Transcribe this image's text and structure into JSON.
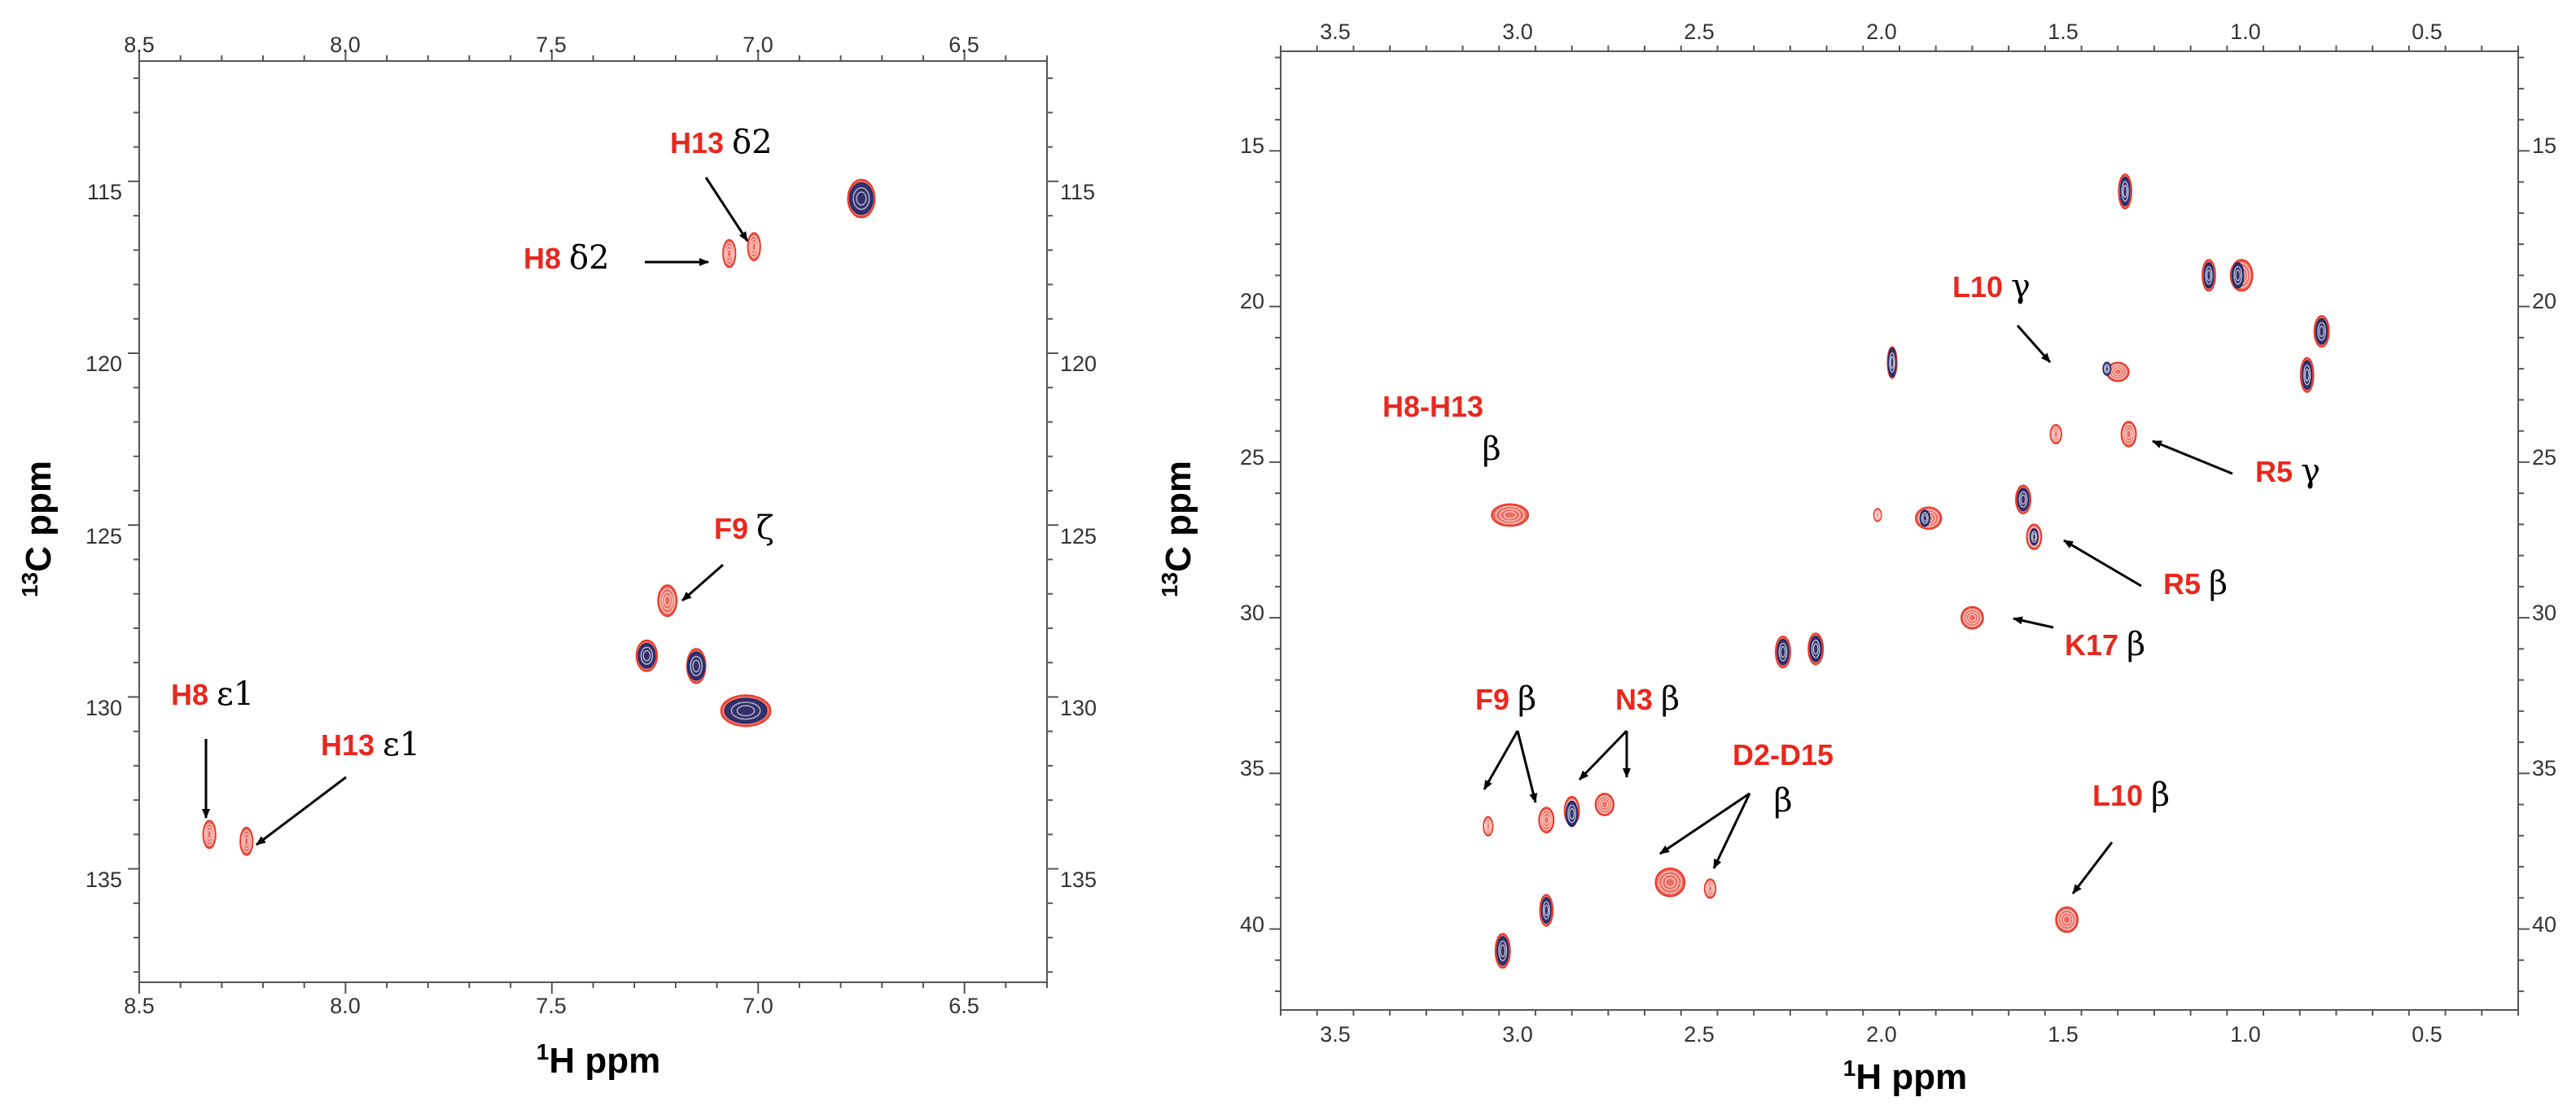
{
  "colors": {
    "reference": "#1f2a6b",
    "sample": "#e83a2a",
    "residue_label": "#e8281e",
    "atom_label": "#000000",
    "arrow": "#000000"
  },
  "chart_data": [
    {
      "type": "scatter",
      "title": "",
      "xlabel": "1H ppm",
      "ylabel": "13C ppm",
      "xlim": [
        8.5,
        6.3
      ],
      "ylim": [
        138.3,
        111.5
      ],
      "x_ticks": [
        8.5,
        8.0,
        7.5,
        7.0,
        6.5
      ],
      "y_ticks": [
        115,
        120,
        125,
        130,
        135
      ],
      "x_tick_labels": [
        "8.5",
        "8.0",
        "7.5",
        "7.0",
        "6.5"
      ],
      "y_tick_labels": [
        "115",
        "120",
        "125",
        "130",
        "135"
      ],
      "grid": false,
      "series": [
        {
          "kind": "reference",
          "points": [
            {
              "x": 6.75,
              "y": 115.5,
              "w": 0.055,
              "h": 0.9
            },
            {
              "x": 7.27,
              "y": 128.8,
              "w": 0.04,
              "h": 0.7
            },
            {
              "x": 7.15,
              "y": 129.1,
              "w": 0.04,
              "h": 0.8
            },
            {
              "x": 7.03,
              "y": 130.4,
              "w": 0.1,
              "h": 0.7
            }
          ]
        },
        {
          "kind": "sample",
          "points": [
            {
              "x": 6.75,
              "y": 115.5,
              "w": 0.065,
              "h": 1.1
            },
            {
              "x": 7.07,
              "y": 117.1,
              "w": 0.03,
              "h": 0.8
            },
            {
              "x": 7.01,
              "y": 116.9,
              "w": 0.03,
              "h": 0.8
            },
            {
              "x": 7.22,
              "y": 127.2,
              "w": 0.045,
              "h": 0.9
            },
            {
              "x": 7.27,
              "y": 128.8,
              "w": 0.05,
              "h": 0.9
            },
            {
              "x": 7.15,
              "y": 129.1,
              "w": 0.045,
              "h": 1.0
            },
            {
              "x": 7.03,
              "y": 130.4,
              "w": 0.12,
              "h": 0.9
            },
            {
              "x": 8.33,
              "y": 134.0,
              "w": 0.03,
              "h": 0.8
            },
            {
              "x": 8.24,
              "y": 134.2,
              "w": 0.03,
              "h": 0.8
            }
          ]
        }
      ],
      "annotations": [
        {
          "residue": "H13",
          "atom": "δ2"
        },
        {
          "residue": "H8",
          "atom": "δ2"
        },
        {
          "residue": "F9",
          "atom": "ζ"
        },
        {
          "residue": "H8",
          "atom": "ε1"
        },
        {
          "residue": "H13",
          "atom": "ε1"
        }
      ]
    },
    {
      "type": "scatter",
      "title": "",
      "xlabel": "1H ppm",
      "ylabel": "13C ppm",
      "xlim": [
        3.65,
        0.25
      ],
      "ylim": [
        42.6,
        11.8
      ],
      "x_ticks": [
        3.5,
        3.0,
        2.5,
        2.0,
        1.5,
        1.0,
        0.5
      ],
      "y_ticks": [
        15,
        20,
        25,
        30,
        35,
        40
      ],
      "x_tick_labels": [
        "3.5",
        "3.0",
        "2.5",
        "2.0",
        "1.5",
        "1.0",
        "0.5"
      ],
      "y_tick_labels": [
        "15",
        "20",
        "25",
        "30",
        "35",
        "40"
      ],
      "grid": false,
      "series": [
        {
          "kind": "reference",
          "points": [
            {
              "x": 1.33,
              "y": 16.3,
              "w": 0.025,
              "h": 0.9
            },
            {
              "x": 1.1,
              "y": 19.0,
              "w": 0.025,
              "h": 0.8
            },
            {
              "x": 1.02,
              "y": 19.0,
              "w": 0.03,
              "h": 0.8
            },
            {
              "x": 0.79,
              "y": 20.8,
              "w": 0.03,
              "h": 0.8
            },
            {
              "x": 0.83,
              "y": 22.2,
              "w": 0.025,
              "h": 0.9
            },
            {
              "x": 1.97,
              "y": 21.8,
              "w": 0.02,
              "h": 0.9
            },
            {
              "x": 1.38,
              "y": 22.0,
              "w": 0.02,
              "h": 0.4
            },
            {
              "x": 1.61,
              "y": 26.2,
              "w": 0.03,
              "h": 0.7
            },
            {
              "x": 1.58,
              "y": 27.4,
              "w": 0.02,
              "h": 0.5
            },
            {
              "x": 1.88,
              "y": 26.8,
              "w": 0.025,
              "h": 0.5
            },
            {
              "x": 2.27,
              "y": 31.1,
              "w": 0.03,
              "h": 0.8
            },
            {
              "x": 2.18,
              "y": 31.0,
              "w": 0.03,
              "h": 0.8
            },
            {
              "x": 2.85,
              "y": 36.3,
              "w": 0.03,
              "h": 0.8
            },
            {
              "x": 3.04,
              "y": 40.7,
              "w": 0.03,
              "h": 0.9
            },
            {
              "x": 2.92,
              "y": 39.4,
              "w": 0.025,
              "h": 0.8
            }
          ]
        },
        {
          "kind": "sample",
          "points": [
            {
              "x": 1.33,
              "y": 16.3,
              "w": 0.035,
              "h": 1.1
            },
            {
              "x": 1.1,
              "y": 19.0,
              "w": 0.035,
              "h": 1.0
            },
            {
              "x": 1.01,
              "y": 19.0,
              "w": 0.06,
              "h": 1.0
            },
            {
              "x": 0.79,
              "y": 20.8,
              "w": 0.04,
              "h": 1.0
            },
            {
              "x": 0.83,
              "y": 22.2,
              "w": 0.035,
              "h": 1.1
            },
            {
              "x": 1.97,
              "y": 21.8,
              "w": 0.025,
              "h": 1.0
            },
            {
              "x": 1.35,
              "y": 22.1,
              "w": 0.06,
              "h": 0.6
            },
            {
              "x": 1.52,
              "y": 24.1,
              "w": 0.03,
              "h": 0.6
            },
            {
              "x": 1.32,
              "y": 24.1,
              "w": 0.04,
              "h": 0.8
            },
            {
              "x": 3.02,
              "y": 26.7,
              "w": 0.1,
              "h": 0.7
            },
            {
              "x": 2.01,
              "y": 26.7,
              "w": 0.02,
              "h": 0.4
            },
            {
              "x": 1.87,
              "y": 26.8,
              "w": 0.07,
              "h": 0.7
            },
            {
              "x": 1.61,
              "y": 26.2,
              "w": 0.04,
              "h": 0.9
            },
            {
              "x": 1.58,
              "y": 27.4,
              "w": 0.04,
              "h": 0.8
            },
            {
              "x": 1.75,
              "y": 30.0,
              "w": 0.06,
              "h": 0.7
            },
            {
              "x": 2.27,
              "y": 31.1,
              "w": 0.04,
              "h": 1.0
            },
            {
              "x": 2.18,
              "y": 31.0,
              "w": 0.04,
              "h": 1.0
            },
            {
              "x": 3.08,
              "y": 36.7,
              "w": 0.025,
              "h": 0.6
            },
            {
              "x": 2.92,
              "y": 36.5,
              "w": 0.04,
              "h": 0.8
            },
            {
              "x": 2.85,
              "y": 36.2,
              "w": 0.04,
              "h": 0.9
            },
            {
              "x": 2.76,
              "y": 36.0,
              "w": 0.05,
              "h": 0.7
            },
            {
              "x": 2.58,
              "y": 38.5,
              "w": 0.08,
              "h": 0.9
            },
            {
              "x": 2.47,
              "y": 38.7,
              "w": 0.03,
              "h": 0.6
            },
            {
              "x": 3.04,
              "y": 40.7,
              "w": 0.04,
              "h": 1.1
            },
            {
              "x": 2.92,
              "y": 39.4,
              "w": 0.035,
              "h": 1.0
            },
            {
              "x": 1.49,
              "y": 39.7,
              "w": 0.06,
              "h": 0.8
            }
          ]
        }
      ],
      "annotations": [
        {
          "residue": "H8-H13",
          "atom": "β"
        },
        {
          "residue": "L10",
          "atom": "γ"
        },
        {
          "residue": "R5",
          "atom": "γ"
        },
        {
          "residue": "R5",
          "atom": "β"
        },
        {
          "residue": "K17",
          "atom": "β"
        },
        {
          "residue": "F9",
          "atom": "β"
        },
        {
          "residue": "N3",
          "atom": "β"
        },
        {
          "residue": "D2-D15",
          "atom": "β"
        },
        {
          "residue": "L10",
          "atom": "β"
        }
      ]
    }
  ]
}
